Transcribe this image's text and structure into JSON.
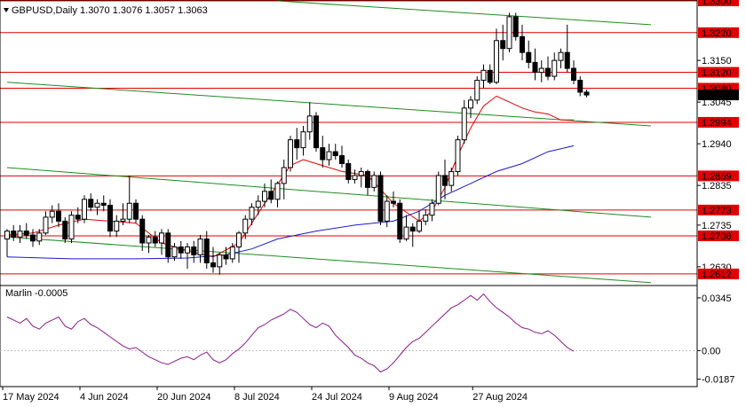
{
  "header": {
    "symbol_line": "GBPUSD,Daily  1.3070  1.3076  1.3057  1.3063"
  },
  "indicator": {
    "label": "Marlin -0.0005",
    "axis_labels": [
      "0.0345",
      "0.00",
      "-0.0187"
    ]
  },
  "colors": {
    "bull_body": "#ffffff",
    "bear_body": "#000000",
    "candle_outline": "#000000",
    "level_line": "#e00000",
    "channel_line": "#1e8c1e",
    "ma_fast": "#e00000",
    "ma_slow": "#1a1acc",
    "oscillator": "#8b1a8b",
    "current_price_bg": "#000000"
  },
  "chart_data": {
    "type": "candlestick",
    "title": "GBPUSD,Daily",
    "ohlc_header": {
      "open": 1.307,
      "high": 1.3076,
      "low": 1.3057,
      "close": 1.3063
    },
    "ylim": [
      1.2585,
      1.33
    ],
    "price_axis_labels": [
      "1.3300",
      "1.3220",
      "1.3150",
      "1.3120",
      "1.3080",
      "1.3063",
      "1.3045",
      "1.2994",
      "1.2940",
      "1.2859",
      "1.2835",
      "1.2773",
      "1.2735",
      "1.2708",
      "1.2630",
      "1.2612"
    ],
    "current_price": "1.3063",
    "levels": [
      "1.3300",
      "1.3220",
      "1.3120",
      "1.3080",
      "1.2994",
      "1.2859",
      "1.2773",
      "1.2708",
      "1.2612"
    ],
    "date_labels": [
      {
        "label": "17 May 2024",
        "index": 0
      },
      {
        "label": "4 Jun 2024",
        "index": 12
      },
      {
        "label": "20 Jun 2024",
        "index": 24
      },
      {
        "label": "8 Jul 2024",
        "index": 36
      },
      {
        "label": "24 Jul 2024",
        "index": 48
      },
      {
        "label": "9 Aug 2024",
        "index": 60
      },
      {
        "label": "27 Aug 2024",
        "index": 73
      }
    ],
    "candles": [
      [
        1.27,
        1.2725,
        1.2655,
        1.272
      ],
      [
        1.272,
        1.2735,
        1.2695,
        1.2705
      ],
      [
        1.2705,
        1.2735,
        1.269,
        1.272
      ],
      [
        1.272,
        1.274,
        1.27,
        1.271
      ],
      [
        1.271,
        1.2725,
        1.268,
        1.2695
      ],
      [
        1.2695,
        1.2725,
        1.2685,
        1.2715
      ],
      [
        1.2715,
        1.277,
        1.271,
        1.2755
      ],
      [
        1.2755,
        1.2785,
        1.274,
        1.277
      ],
      [
        1.277,
        1.279,
        1.273,
        1.2745
      ],
      [
        1.2745,
        1.2755,
        1.269,
        1.27
      ],
      [
        1.27,
        1.277,
        1.269,
        1.276
      ],
      [
        1.276,
        1.278,
        1.274,
        1.275
      ],
      [
        1.275,
        1.281,
        1.274,
        1.28
      ],
      [
        1.28,
        1.2815,
        1.277,
        1.278
      ],
      [
        1.278,
        1.28,
        1.276,
        1.279
      ],
      [
        1.279,
        1.281,
        1.277,
        1.2785
      ],
      [
        1.2785,
        1.28,
        1.2705,
        1.272
      ],
      [
        1.272,
        1.276,
        1.2705,
        1.2745
      ],
      [
        1.2745,
        1.279,
        1.2735,
        1.275
      ],
      [
        1.275,
        1.286,
        1.274,
        1.279
      ],
      [
        1.279,
        1.28,
        1.274,
        1.275
      ],
      [
        1.275,
        1.276,
        1.267,
        1.269
      ],
      [
        1.269,
        1.271,
        1.2665,
        1.2705
      ],
      [
        1.2705,
        1.272,
        1.268,
        1.269
      ],
      [
        1.269,
        1.2725,
        1.266,
        1.2715
      ],
      [
        1.2715,
        1.2725,
        1.264,
        1.2655
      ],
      [
        1.2655,
        1.269,
        1.2645,
        1.268
      ],
      [
        1.268,
        1.2695,
        1.265,
        1.2665
      ],
      [
        1.2665,
        1.269,
        1.2625,
        1.268
      ],
      [
        1.268,
        1.2695,
        1.264,
        1.266
      ],
      [
        1.266,
        1.271,
        1.264,
        1.27
      ],
      [
        1.27,
        1.272,
        1.2625,
        1.264
      ],
      [
        1.264,
        1.268,
        1.2615,
        1.263
      ],
      [
        1.263,
        1.2665,
        1.261,
        1.266
      ],
      [
        1.266,
        1.268,
        1.2635,
        1.265
      ],
      [
        1.265,
        1.269,
        1.264,
        1.268
      ],
      [
        1.268,
        1.272,
        1.264,
        1.2715
      ],
      [
        1.2715,
        1.276,
        1.27,
        1.275
      ],
      [
        1.275,
        1.279,
        1.2735,
        1.278
      ],
      [
        1.278,
        1.281,
        1.276,
        1.2795
      ],
      [
        1.2795,
        1.284,
        1.278,
        1.282
      ],
      [
        1.282,
        1.285,
        1.279,
        1.28
      ],
      [
        1.28,
        1.2845,
        1.278,
        1.284
      ],
      [
        1.284,
        1.29,
        1.28,
        1.288
      ],
      [
        1.288,
        1.296,
        1.287,
        1.295
      ],
      [
        1.295,
        1.298,
        1.29,
        1.293
      ],
      [
        1.293,
        1.2985,
        1.291,
        1.297
      ],
      [
        1.297,
        1.3045,
        1.295,
        1.301
      ],
      [
        1.301,
        1.302,
        1.292,
        1.293
      ],
      [
        1.293,
        1.296,
        1.288,
        1.29
      ],
      [
        1.29,
        1.294,
        1.2885,
        1.292
      ],
      [
        1.292,
        1.294,
        1.29,
        1.291
      ],
      [
        1.291,
        1.2935,
        1.288,
        1.289
      ],
      [
        1.289,
        1.29,
        1.284,
        1.285
      ],
      [
        1.285,
        1.2875,
        1.284,
        1.286
      ],
      [
        1.286,
        1.288,
        1.283,
        1.287
      ],
      [
        1.287,
        1.2875,
        1.281,
        1.283
      ],
      [
        1.283,
        1.287,
        1.282,
        1.286
      ],
      [
        1.286,
        1.287,
        1.2735,
        1.2745
      ],
      [
        1.2745,
        1.281,
        1.273,
        1.2795
      ],
      [
        1.2795,
        1.282,
        1.278,
        1.279
      ],
      [
        1.279,
        1.28,
        1.269,
        1.27
      ],
      [
        1.27,
        1.276,
        1.2695,
        1.273
      ],
      [
        1.273,
        1.274,
        1.268,
        1.272
      ],
      [
        1.272,
        1.277,
        1.2715,
        1.2745
      ],
      [
        1.2745,
        1.2775,
        1.2735,
        1.276
      ],
      [
        1.276,
        1.28,
        1.2745,
        1.279
      ],
      [
        1.279,
        1.287,
        1.2785,
        1.286
      ],
      [
        1.286,
        1.29,
        1.28,
        1.2835
      ],
      [
        1.2835,
        1.288,
        1.282,
        1.287
      ],
      [
        1.287,
        1.296,
        1.286,
        1.295
      ],
      [
        1.295,
        1.305,
        1.294,
        1.303
      ],
      [
        1.303,
        1.306,
        1.3005,
        1.305
      ],
      [
        1.305,
        1.311,
        1.304,
        1.31
      ],
      [
        1.31,
        1.314,
        1.308,
        1.3125
      ],
      [
        1.3125,
        1.314,
        1.309,
        1.3095
      ],
      [
        1.3095,
        1.323,
        1.309,
        1.32
      ],
      [
        1.32,
        1.324,
        1.315,
        1.318
      ],
      [
        1.318,
        1.327,
        1.317,
        1.326
      ],
      [
        1.326,
        1.327,
        1.32,
        1.321
      ],
      [
        1.321,
        1.324,
        1.315,
        1.317
      ],
      [
        1.317,
        1.32,
        1.313,
        1.3145
      ],
      [
        1.3145,
        1.318,
        1.31,
        1.312
      ],
      [
        1.312,
        1.315,
        1.3095,
        1.313
      ],
      [
        1.313,
        1.316,
        1.31,
        1.311
      ],
      [
        1.311,
        1.317,
        1.31,
        1.315
      ],
      [
        1.315,
        1.318,
        1.313,
        1.317
      ],
      [
        1.317,
        1.324,
        1.312,
        1.313
      ],
      [
        1.313,
        1.315,
        1.309,
        1.31
      ],
      [
        1.31,
        1.311,
        1.306,
        1.307
      ],
      [
        1.307,
        1.3076,
        1.3057,
        1.3063
      ]
    ],
    "channel_lines": [
      {
        "name": "",
        "points": [
          [
            0,
            1.3095
          ],
          [
            100,
            1.2985
          ]
        ]
      },
      {
        "name": "",
        "points": [
          [
            0,
            1.288
          ],
          [
            100,
            1.2755
          ]
        ]
      },
      {
        "name": "",
        "points": [
          [
            0,
            1.2705
          ],
          [
            100,
            1.259
          ]
        ]
      },
      {
        "name": "",
        "points": [
          [
            42,
            1.33
          ],
          [
            100,
            1.324
          ]
        ]
      }
    ],
    "ma_fast": [
      [
        0,
        1.271
      ],
      [
        4,
        1.2715
      ],
      [
        8,
        1.2735
      ],
      [
        12,
        1.275
      ],
      [
        16,
        1.2745
      ],
      [
        20,
        1.274
      ],
      [
        24,
        1.269
      ],
      [
        28,
        1.267
      ],
      [
        32,
        1.2655
      ],
      [
        36,
        1.269
      ],
      [
        40,
        1.279
      ],
      [
        44,
        1.2885
      ],
      [
        46,
        1.29
      ],
      [
        48,
        1.289
      ],
      [
        52,
        1.287
      ],
      [
        56,
        1.286
      ],
      [
        60,
        1.279
      ],
      [
        64,
        1.2745
      ],
      [
        66,
        1.277
      ],
      [
        68,
        1.283
      ],
      [
        70,
        1.291
      ],
      [
        72,
        1.298
      ],
      [
        74,
        1.3035
      ],
      [
        76,
        1.306
      ],
      [
        78,
        1.3045
      ],
      [
        80,
        1.303
      ],
      [
        82,
        1.302
      ],
      [
        84,
        1.3015
      ],
      [
        86,
        1.3
      ],
      [
        88,
        1.3
      ]
    ],
    "ma_slow": [
      [
        0,
        1.2655
      ],
      [
        10,
        1.265
      ],
      [
        20,
        1.265
      ],
      [
        28,
        1.2652
      ],
      [
        34,
        1.266
      ],
      [
        38,
        1.2675
      ],
      [
        42,
        1.27
      ],
      [
        48,
        1.272
      ],
      [
        54,
        1.2735
      ],
      [
        60,
        1.2745
      ],
      [
        64,
        1.277
      ],
      [
        68,
        1.281
      ],
      [
        72,
        1.284
      ],
      [
        76,
        1.287
      ],
      [
        80,
        1.289
      ],
      [
        84,
        1.292
      ],
      [
        88,
        1.2935
      ]
    ],
    "oscillator": {
      "name": "Marlin",
      "ylim": [
        -0.023,
        0.042
      ],
      "values": [
        0.022,
        0.02,
        0.018,
        0.021,
        0.016,
        0.014,
        0.018,
        0.02,
        0.022,
        0.016,
        0.014,
        0.019,
        0.021,
        0.017,
        0.015,
        0.012,
        0.009,
        0.006,
        0.003,
        0.001,
        0.002,
        -0.001,
        -0.004,
        -0.006,
        -0.008,
        -0.009,
        -0.007,
        -0.005,
        -0.004,
        -0.006,
        -0.003,
        -0.001,
        -0.006,
        -0.008,
        -0.006,
        -0.002,
        0.001,
        0.005,
        0.01,
        0.015,
        0.017,
        0.02,
        0.022,
        0.024,
        0.027,
        0.025,
        0.021,
        0.017,
        0.015,
        0.018,
        0.016,
        0.01,
        0.006,
        0.002,
        -0.003,
        -0.005,
        -0.008,
        -0.01,
        -0.014,
        -0.012,
        -0.008,
        -0.003,
        0.002,
        0.006,
        0.008,
        0.012,
        0.016,
        0.02,
        0.024,
        0.028,
        0.03,
        0.033,
        0.036,
        0.033,
        0.037,
        0.032,
        0.028,
        0.025,
        0.022,
        0.018,
        0.015,
        0.014,
        0.012,
        0.011,
        0.013,
        0.01,
        0.006,
        0.002,
        -0.0005
      ]
    }
  }
}
